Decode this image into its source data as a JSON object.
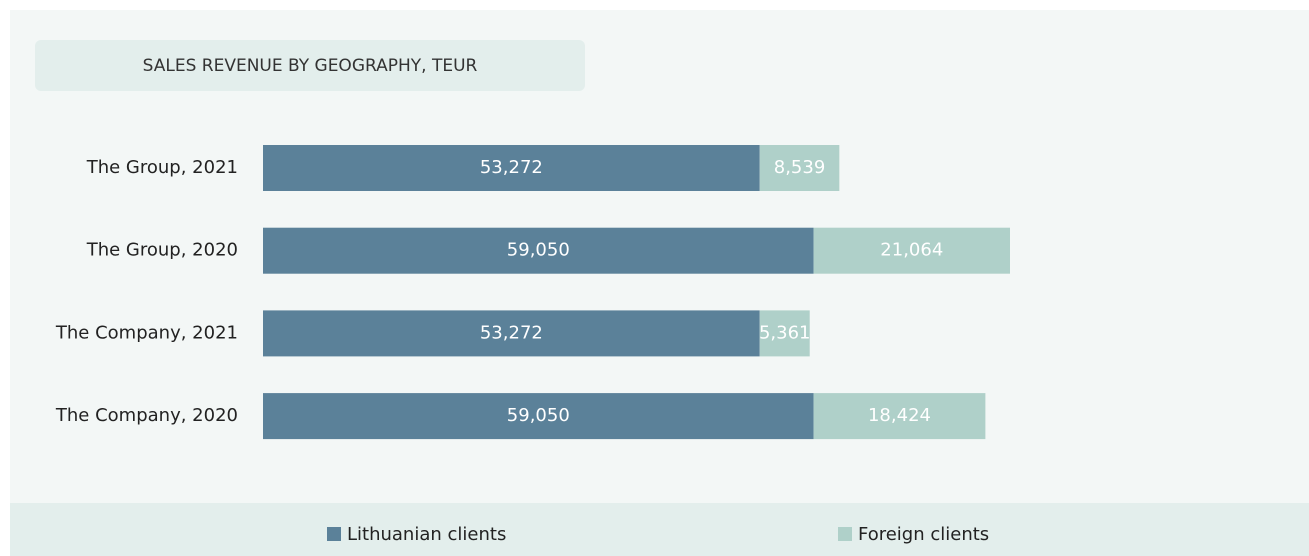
{
  "chart_data": {
    "type": "stacked-barh",
    "title": "SALES REVENUE BY GEOGRAPHY, TEUR",
    "categories": [
      "The Group, 2021",
      "The Group, 2020",
      "The Company, 2021",
      "The Company, 2020"
    ],
    "series": [
      {
        "name": "Lithuanian clients",
        "color": "#5b8199",
        "values": [
          53272,
          59050,
          53272,
          59050
        ],
        "value_labels": [
          "53,272",
          "59,050",
          "53,272",
          "59,050"
        ]
      },
      {
        "name": "Foreign clients",
        "color": "#afd0c9",
        "values": [
          8539,
          21064,
          5361,
          18424
        ],
        "value_labels": [
          "8,539",
          "21,064",
          "5,361",
          "18,424"
        ]
      }
    ],
    "legend": "bottom"
  }
}
